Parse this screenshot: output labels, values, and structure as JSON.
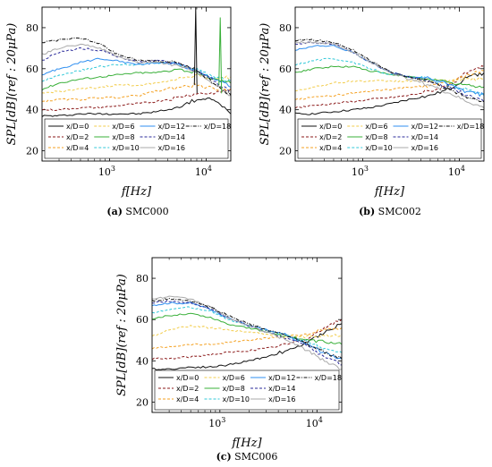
{
  "series_labels": [
    "x/D=0",
    "x/D=2",
    "x/D=4",
    "x/D=6",
    "x/D=8",
    "x/D=10",
    "x/D=12",
    "x/D=14",
    "x/D=16",
    "x/D=18"
  ],
  "series_colors": [
    "#111111",
    "#8b1a1a",
    "#f4a020",
    "#f2cc4a",
    "#3ab03a",
    "#30c8d8",
    "#2f8ff0",
    "#2a2a9a",
    "#aaaaaa",
    "#111111"
  ],
  "series_dashed": [
    false,
    true,
    true,
    true,
    false,
    true,
    false,
    true,
    false,
    true
  ],
  "chart_data": [
    {
      "type": "line",
      "caption": {
        "letter": "(a)",
        "text": "SMC000"
      },
      "xlabel": "f[Hz]",
      "ylabel": "SPL[dB](ref : 20μPa)",
      "xscale": "log",
      "xlim": [
        200,
        18000
      ],
      "ylim": [
        15,
        90
      ],
      "xticks": [
        {
          "v": 1000,
          "b": "10",
          "e": "3"
        },
        {
          "v": 10000,
          "b": "10",
          "e": "4"
        }
      ],
      "yticks": [
        20,
        40,
        60,
        80
      ],
      "x": [
        200,
        300,
        500,
        800,
        1200,
        2000,
        3000,
        5000,
        8000,
        12000,
        18000
      ],
      "series": [
        {
          "values": [
            37,
            37,
            38,
            38,
            38,
            38,
            39,
            41,
            45,
            45,
            38
          ]
        },
        {
          "values": [
            40,
            40,
            41,
            41,
            42,
            43,
            44,
            46,
            48,
            48,
            50
          ]
        },
        {
          "values": [
            44,
            45,
            45,
            46,
            46,
            47,
            49,
            51,
            52,
            50,
            50
          ]
        },
        {
          "values": [
            48,
            49,
            50,
            51,
            52,
            52,
            53,
            55,
            57,
            55,
            56
          ]
        },
        {
          "values": [
            50,
            53,
            55,
            56,
            57,
            58,
            58,
            60,
            58,
            55,
            53
          ]
        },
        {
          "values": [
            54,
            57,
            59,
            61,
            62,
            62,
            63,
            62,
            60,
            56,
            54
          ]
        },
        {
          "values": [
            57,
            60,
            63,
            65,
            64,
            62,
            63,
            62,
            59,
            55,
            51
          ]
        },
        {
          "values": [
            64,
            68,
            70,
            69,
            66,
            63,
            64,
            63,
            59,
            54,
            49
          ]
        },
        {
          "values": [
            67,
            70,
            72,
            70,
            66,
            63,
            63,
            62,
            58,
            53,
            47
          ]
        },
        {
          "values": [
            73,
            74,
            75,
            72,
            67,
            64,
            64,
            63,
            59,
            53,
            47
          ]
        }
      ],
      "spikes": [
        {
          "x": 7800,
          "y": 90
        },
        {
          "x": 14000,
          "y": 85
        }
      ]
    },
    {
      "type": "line",
      "caption": {
        "letter": "(b)",
        "text": "SMC002"
      },
      "xlabel": "f[Hz]",
      "ylabel": "SPL[dB](ref : 20μPa)",
      "xscale": "log",
      "xlim": [
        200,
        18000
      ],
      "ylim": [
        15,
        90
      ],
      "xticks": [
        {
          "v": 1000,
          "b": "10",
          "e": "3"
        },
        {
          "v": 10000,
          "b": "10",
          "e": "4"
        }
      ],
      "yticks": [
        20,
        40,
        60,
        80
      ],
      "x": [
        200,
        300,
        500,
        800,
        1200,
        2000,
        3000,
        5000,
        8000,
        12000,
        18000
      ],
      "series": [
        {
          "values": [
            38,
            38,
            39,
            40,
            41,
            43,
            45,
            47,
            50,
            56,
            58
          ]
        },
        {
          "values": [
            41,
            42,
            43,
            44,
            45,
            46,
            47,
            49,
            52,
            58,
            61
          ]
        },
        {
          "values": [
            45,
            46,
            47,
            48,
            49,
            50,
            51,
            52,
            53,
            57,
            59
          ]
        },
        {
          "values": [
            49,
            51,
            53,
            54,
            54,
            54,
            54,
            54,
            54,
            55,
            55
          ]
        },
        {
          "values": [
            58,
            60,
            61,
            61,
            59,
            57,
            56,
            55,
            53,
            52,
            51
          ]
        },
        {
          "values": [
            62,
            64,
            65,
            63,
            60,
            57,
            56,
            55,
            52,
            50,
            48
          ]
        },
        {
          "values": [
            69,
            71,
            71,
            68,
            63,
            58,
            56,
            55,
            52,
            49,
            47
          ]
        },
        {
          "values": [
            72,
            73,
            72,
            68,
            63,
            58,
            56,
            54,
            51,
            47,
            44
          ]
        },
        {
          "values": [
            73,
            73,
            72,
            68,
            63,
            58,
            55,
            52,
            48,
            44,
            41
          ]
        },
        {
          "values": [
            74,
            74,
            73,
            69,
            64,
            58,
            56,
            54,
            50,
            46,
            44
          ]
        }
      ],
      "spikes": []
    },
    {
      "type": "line",
      "caption": {
        "letter": "(c)",
        "text": "SMC006"
      },
      "xlabel": "f[Hz]",
      "ylabel": "SPL[dB](ref : 20μPa)",
      "xscale": "log",
      "xlim": [
        200,
        18000
      ],
      "ylim": [
        15,
        90
      ],
      "xticks": [
        {
          "v": 1000,
          "b": "10",
          "e": "3"
        },
        {
          "v": 10000,
          "b": "10",
          "e": "4"
        }
      ],
      "yticks": [
        20,
        40,
        60,
        80
      ],
      "x": [
        200,
        300,
        500,
        800,
        1200,
        2000,
        3000,
        5000,
        8000,
        12000,
        18000
      ],
      "series": [
        {
          "values": [
            36,
            36,
            37,
            37,
            38,
            40,
            42,
            45,
            49,
            54,
            58
          ]
        },
        {
          "values": [
            41,
            41,
            42,
            43,
            44,
            45,
            46,
            48,
            51,
            56,
            60
          ]
        },
        {
          "values": [
            46,
            47,
            48,
            48,
            49,
            50,
            51,
            52,
            53,
            55,
            56
          ]
        },
        {
          "values": [
            52,
            55,
            57,
            56,
            55,
            54,
            53,
            52,
            52,
            52,
            53
          ]
        },
        {
          "values": [
            60,
            62,
            63,
            61,
            58,
            56,
            54,
            52,
            50,
            49,
            48
          ]
        },
        {
          "values": [
            63,
            65,
            66,
            64,
            60,
            57,
            55,
            52,
            49,
            46,
            44
          ]
        },
        {
          "values": [
            67,
            68,
            68,
            65,
            61,
            57,
            55,
            52,
            48,
            44,
            41
          ]
        },
        {
          "values": [
            68,
            69,
            68,
            65,
            61,
            57,
            54,
            51,
            47,
            42,
            38
          ]
        },
        {
          "values": [
            70,
            71,
            70,
            66,
            61,
            57,
            54,
            50,
            45,
            40,
            36
          ]
        },
        {
          "values": [
            69,
            70,
            69,
            66,
            62,
            58,
            55,
            52,
            48,
            44,
            41
          ]
        }
      ],
      "spikes": []
    }
  ]
}
